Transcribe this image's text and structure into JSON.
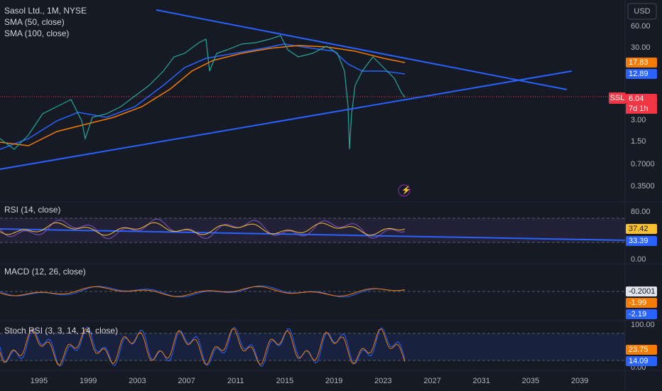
{
  "header": {
    "title": "Sasol Ltd., 1M, NYSE",
    "indicators": [
      "SMA (50, close)",
      "SMA (100, close)"
    ]
  },
  "currency": "USD",
  "price_axis": {
    "labels": [
      "60.00",
      "30.00",
      "3.00",
      "1.50",
      "0.7000",
      "0.3500"
    ],
    "tags": [
      {
        "text": "17.83",
        "color": "#f57c00"
      },
      {
        "text": "12.89",
        "color": "#2962ff"
      },
      {
        "text": "6.04",
        "color": "#f23645"
      }
    ],
    "symbol": "SSL",
    "countdown": "7d 1h"
  },
  "panes": [
    {
      "label": "RSI (14, close)",
      "labels": [
        "80.00",
        "0.00"
      ],
      "tags": [
        {
          "text": "37.42",
          "color": "#fbc02d"
        },
        {
          "text": "33.39",
          "color": "#2962ff"
        }
      ]
    },
    {
      "label": "MACD (12, 26, close)",
      "labels": [],
      "tags": [
        {
          "text": "-0.2001",
          "color": "#e0e3eb"
        },
        {
          "text": "-1.99",
          "color": "#f57c00"
        },
        {
          "text": "-2.19",
          "color": "#2962ff"
        }
      ]
    },
    {
      "label": "Stoch RSI (3, 3, 14, 14, close)",
      "labels": [
        "100.00",
        "0.00"
      ],
      "tags": [
        {
          "text": "23.75",
          "color": "#f57c00"
        },
        {
          "text": "14.09",
          "color": "#2962ff"
        }
      ]
    }
  ],
  "time_axis": [
    "1995",
    "1999",
    "2003",
    "2007",
    "2011",
    "2015",
    "2019",
    "2023",
    "2027",
    "2031",
    "2035",
    "2039"
  ]
}
